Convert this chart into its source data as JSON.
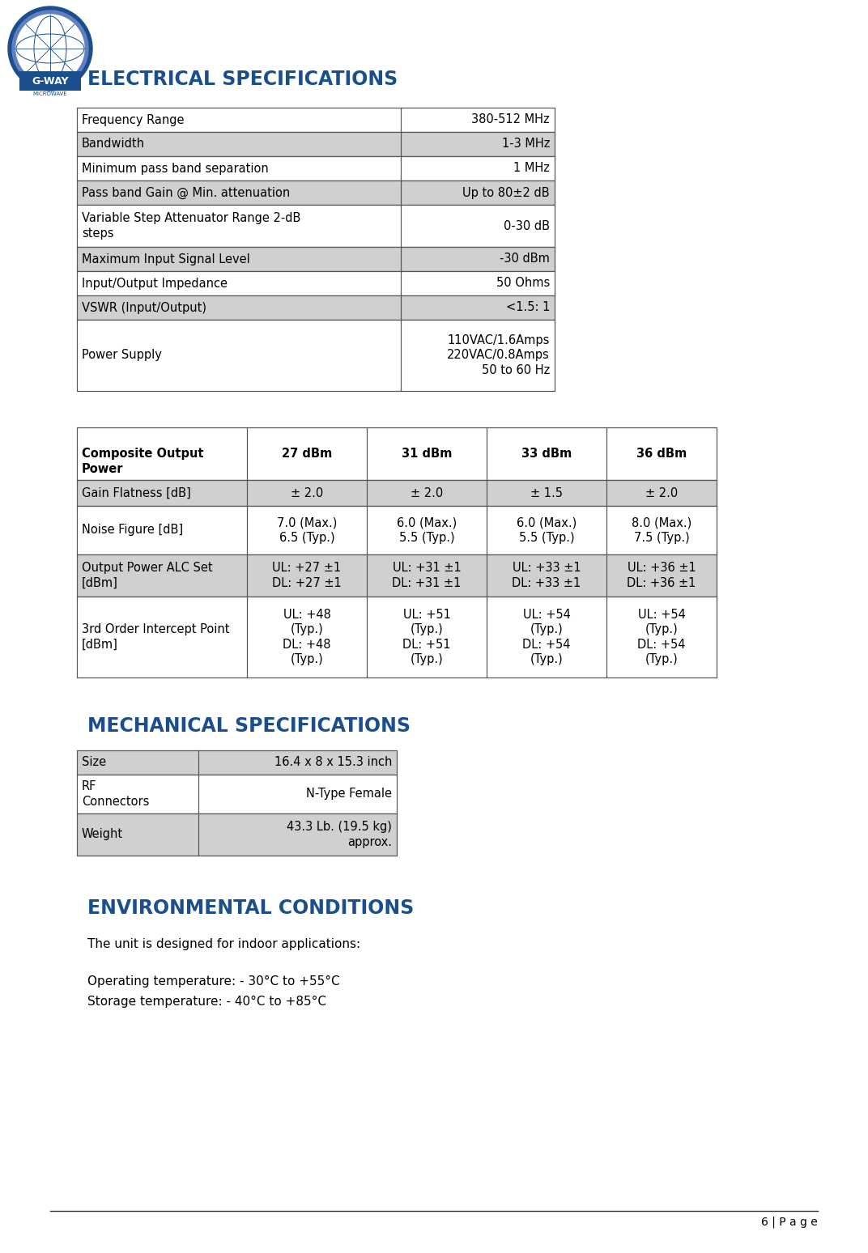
{
  "bg_color": "#ffffff",
  "header_color": "#1A4E8C",
  "table_border_color": "#555555",
  "shade_color": "#D0D0D0",
  "font_color": "#000000",
  "elec_title": "ELECTRICAL SPECIFICATIONS",
  "elec_table": [
    [
      "Frequency Range",
      "380-512 MHz"
    ],
    [
      "Bandwidth",
      "1-3 MHz"
    ],
    [
      "Minimum pass band separation",
      "1 MHz"
    ],
    [
      "Pass band Gain @ Min. attenuation",
      "Up to 80±2 dB"
    ],
    [
      "Variable Step Attenuator Range 2-dB\nsteps",
      "0-30 dB"
    ],
    [
      "Maximum Input Signal Level",
      "-30 dBm"
    ],
    [
      "Input/Output Impedance",
      "50 Ohms"
    ],
    [
      "VSWR (Input/Output)",
      "<1.5: 1"
    ],
    [
      "Power Supply",
      "110VAC/1.6Amps\n220VAC/0.8Amps\n50 to 60 Hz"
    ]
  ],
  "elec_shaded_rows": [
    1,
    3,
    5,
    7
  ],
  "perf_header": [
    "Composite Output\nPower",
    "27 dBm",
    "31 dBm",
    "33 dBm",
    "36 dBm"
  ],
  "perf_rows": [
    [
      "Gain Flatness [dB]",
      "± 2.0",
      "± 2.0",
      "± 1.5",
      "± 2.0"
    ],
    [
      "Noise Figure [dB]",
      "7.0 (Max.)\n6.5 (Typ.)",
      "6.0 (Max.)\n5.5 (Typ.)",
      "6.0 (Max.)\n5.5 (Typ.)",
      "8.0 (Max.)\n7.5 (Typ.)"
    ],
    [
      "Output Power ALC Set\n[dBm]",
      "UL: +27 ±1\nDL: +27 ±1",
      "UL: +31 ±1\nDL: +31 ±1",
      "UL: +33 ±1\nDL: +33 ±1",
      "UL: +36 ±1\nDL: +36 ±1"
    ],
    [
      "3rd Order Intercept Point\n[dBm]",
      "UL: +48\n(Typ.)\nDL: +48\n(Typ.)",
      "UL: +51\n(Typ.)\nDL: +51\n(Typ.)",
      "UL: +54\n(Typ.)\nDL: +54\n(Typ.)",
      "UL: +54\n(Typ.)\nDL: +54\n(Typ.)"
    ]
  ],
  "perf_shaded_rows": [
    0,
    2
  ],
  "mech_title": "MECHANICAL SPECIFICATIONS",
  "mech_table": [
    [
      "Size",
      "16.4 x 8 x 15.3 inch"
    ],
    [
      "RF\nConnectors",
      "N-Type Female"
    ],
    [
      "Weight",
      "43.3 Lb. (19.5 kg)\napprox."
    ]
  ],
  "mech_shaded_rows": [
    0,
    2
  ],
  "env_title": "ENVIRONMENTAL CONDITIONS",
  "env_line1": "The unit is designed for indoor applications:",
  "env_line2": "Operating temperature: - 30°C to +55°C",
  "env_line3": "Storage temperature: - 40°C to +85°C",
  "page_label": "6 | P a g e",
  "logo_outer_color": "#1A4E8C",
  "logo_inner_color": "#ffffff",
  "logo_text1": "G-WAY",
  "logo_text2": "MICROWAVE"
}
